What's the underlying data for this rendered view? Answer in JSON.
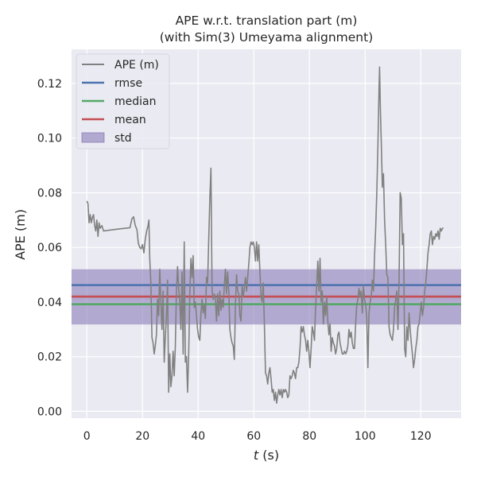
{
  "chart_data": {
    "type": "line",
    "title_line1": "APE w.r.t. translation part (m)",
    "title_line2": "(with Sim(3) Umeyama alignment)",
    "xlabel_var": "t",
    "xlabel_unit": " (s)",
    "ylabel": "APE (m)",
    "xlim": [
      -5.5,
      134.5
    ],
    "ylim": [
      -0.0025,
      0.1325
    ],
    "xticks": [
      0,
      20,
      40,
      60,
      80,
      100,
      120
    ],
    "yticks": [
      0.0,
      0.02,
      0.04,
      0.06,
      0.08,
      0.1,
      0.12
    ],
    "ytick_labels": [
      "0.00",
      "0.02",
      "0.04",
      "0.06",
      "0.08",
      "0.10",
      "0.12"
    ],
    "grid": true,
    "legend_position": "top-left",
    "stats": {
      "rmse": 0.0462,
      "median": 0.0392,
      "mean": 0.042,
      "std_low": 0.0318,
      "std_high": 0.052
    },
    "legend": [
      {
        "key": "ape",
        "label": "APE (m)",
        "kind": "line",
        "color": "#808080"
      },
      {
        "key": "rmse",
        "label": "rmse",
        "kind": "line",
        "color": "#4c72b0"
      },
      {
        "key": "median",
        "label": "median",
        "kind": "line",
        "color": "#55a868"
      },
      {
        "key": "mean",
        "label": "mean",
        "kind": "line",
        "color": "#c44e52"
      },
      {
        "key": "std",
        "label": "std",
        "kind": "patch",
        "color": "#8172b2"
      }
    ],
    "series": [
      {
        "name": "APE (m)",
        "color": "#808080",
        "points": [
          [
            0,
            0.077
          ],
          [
            0.4,
            0.076
          ],
          [
            0.8,
            0.069
          ],
          [
            1.2,
            0.072
          ],
          [
            1.6,
            0.069
          ],
          [
            2.0,
            0.071
          ],
          [
            2.4,
            0.072
          ],
          [
            2.8,
            0.068
          ],
          [
            3.2,
            0.066
          ],
          [
            3.6,
            0.07
          ],
          [
            4.0,
            0.064
          ],
          [
            4.4,
            0.069
          ],
          [
            4.8,
            0.067
          ],
          [
            5.4,
            0.068
          ],
          [
            6.0,
            0.066
          ],
          [
            8,
            0.0663
          ],
          [
            12,
            0.0668
          ],
          [
            15.5,
            0.0672
          ],
          [
            16.2,
            0.0705
          ],
          [
            16.8,
            0.0712
          ],
          [
            17.4,
            0.068
          ],
          [
            18.0,
            0.0665
          ],
          [
            18.5,
            0.0615
          ],
          [
            19.0,
            0.06
          ],
          [
            19.5,
            0.0595
          ],
          [
            20.0,
            0.061
          ],
          [
            20.5,
            0.058
          ],
          [
            21.0,
            0.063
          ],
          [
            21.5,
            0.066
          ],
          [
            22.0,
            0.068
          ],
          [
            22.3,
            0.07
          ],
          [
            22.6,
            0.056
          ],
          [
            23.0,
            0.047
          ],
          [
            23.4,
            0.027
          ],
          [
            23.8,
            0.025
          ],
          [
            24.2,
            0.021
          ],
          [
            24.6,
            0.024
          ],
          [
            25.0,
            0.028
          ],
          [
            25.4,
            0.041
          ],
          [
            25.8,
            0.035
          ],
          [
            26.2,
            0.052
          ],
          [
            26.6,
            0.04
          ],
          [
            27.0,
            0.03
          ],
          [
            27.4,
            0.044
          ],
          [
            27.8,
            0.018
          ],
          [
            28.2,
            0.027
          ],
          [
            28.6,
            0.035
          ],
          [
            29.0,
            0.048
          ],
          [
            29.4,
            0.007
          ],
          [
            29.8,
            0.021
          ],
          [
            30.2,
            0.009
          ],
          [
            30.6,
            0.013
          ],
          [
            31.0,
            0.022
          ],
          [
            31.4,
            0.013
          ],
          [
            31.8,
            0.024
          ],
          [
            32.2,
            0.044
          ],
          [
            32.6,
            0.053
          ],
          [
            33.0,
            0.045
          ],
          [
            33.4,
            0.04
          ],
          [
            33.8,
            0.03
          ],
          [
            34.2,
            0.051
          ],
          [
            34.6,
            0.021
          ],
          [
            35.0,
            0.062
          ],
          [
            35.4,
            0.018
          ],
          [
            35.8,
            0.02
          ],
          [
            36.2,
            0.007
          ],
          [
            36.6,
            0.021
          ],
          [
            37.0,
            0.043
          ],
          [
            37.4,
            0.056
          ],
          [
            37.8,
            0.049
          ],
          [
            38.2,
            0.057
          ],
          [
            38.6,
            0.038
          ],
          [
            39.0,
            0.04
          ],
          [
            39.4,
            0.035
          ],
          [
            39.8,
            0.03
          ],
          [
            40.2,
            0.027
          ],
          [
            40.6,
            0.026
          ],
          [
            41.0,
            0.036
          ],
          [
            41.4,
            0.041
          ],
          [
            41.8,
            0.036
          ],
          [
            42.2,
            0.039
          ],
          [
            42.6,
            0.034
          ],
          [
            43.0,
            0.049
          ],
          [
            43.4,
            0.047
          ],
          [
            43.8,
            0.063
          ],
          [
            44.2,
            0.078
          ],
          [
            44.6,
            0.089
          ],
          [
            45.0,
            0.044
          ],
          [
            45.4,
            0.041
          ],
          [
            45.8,
            0.043
          ],
          [
            46.2,
            0.041
          ],
          [
            46.6,
            0.033
          ],
          [
            47.0,
            0.043
          ],
          [
            47.4,
            0.035
          ],
          [
            47.8,
            0.044
          ],
          [
            48.2,
            0.037
          ],
          [
            48.6,
            0.041
          ],
          [
            49.0,
            0.038
          ],
          [
            49.4,
            0.046
          ],
          [
            49.8,
            0.052
          ],
          [
            50.2,
            0.043
          ],
          [
            50.6,
            0.051
          ],
          [
            51.0,
            0.044
          ],
          [
            51.4,
            0.03
          ],
          [
            51.8,
            0.027
          ],
          [
            52.2,
            0.025
          ],
          [
            52.6,
            0.024
          ],
          [
            53.0,
            0.019
          ],
          [
            53.4,
            0.039
          ],
          [
            53.8,
            0.05
          ],
          [
            54.2,
            0.044
          ],
          [
            54.6,
            0.043
          ],
          [
            55.0,
            0.035
          ],
          [
            55.4,
            0.033
          ],
          [
            55.8,
            0.046
          ],
          [
            56.2,
            0.042
          ],
          [
            56.6,
            0.045
          ],
          [
            57.0,
            0.049
          ],
          [
            57.4,
            0.044
          ],
          [
            57.8,
            0.049
          ],
          [
            58.2,
            0.054
          ],
          [
            58.6,
            0.06
          ],
          [
            59.0,
            0.062
          ],
          [
            59.4,
            0.061
          ],
          [
            59.8,
            0.062
          ],
          [
            60.2,
            0.06
          ],
          [
            60.6,
            0.055
          ],
          [
            61.0,
            0.062
          ],
          [
            61.4,
            0.055
          ],
          [
            61.8,
            0.061
          ],
          [
            62.2,
            0.051
          ],
          [
            62.6,
            0.042
          ],
          [
            63.0,
            0.04
          ],
          [
            63.4,
            0.047
          ],
          [
            63.8,
            0.032
          ],
          [
            64.2,
            0.014
          ],
          [
            64.6,
            0.013
          ],
          [
            65.0,
            0.01
          ],
          [
            65.4,
            0.014
          ],
          [
            65.8,
            0.016
          ],
          [
            66.2,
            0.012
          ],
          [
            66.6,
            0.007
          ],
          [
            67.0,
            0.008
          ],
          [
            67.4,
            0.004
          ],
          [
            67.8,
            0.007
          ],
          [
            68.2,
            0.003
          ],
          [
            68.6,
            0.006
          ],
          [
            69.0,
            0.008
          ],
          [
            69.4,
            0.006
          ],
          [
            69.8,
            0.008
          ],
          [
            70.2,
            0.005
          ],
          [
            70.6,
            0.008
          ],
          [
            71.0,
            0.007
          ],
          [
            71.4,
            0.008
          ],
          [
            71.8,
            0.007
          ],
          [
            72.2,
            0.005
          ],
          [
            72.6,
            0.006
          ],
          [
            73.0,
            0.013
          ],
          [
            73.4,
            0.012
          ],
          [
            73.8,
            0.013
          ],
          [
            74.2,
            0.015
          ],
          [
            74.6,
            0.014
          ],
          [
            75.0,
            0.012
          ],
          [
            75.4,
            0.016
          ],
          [
            75.8,
            0.016
          ],
          [
            76.2,
            0.018
          ],
          [
            76.6,
            0.023
          ],
          [
            77.0,
            0.031
          ],
          [
            77.4,
            0.029
          ],
          [
            77.8,
            0.031
          ],
          [
            78.2,
            0.028
          ],
          [
            78.6,
            0.026
          ],
          [
            79.0,
            0.022
          ],
          [
            79.4,
            0.026
          ],
          [
            79.8,
            0.022
          ],
          [
            80.2,
            0.016
          ],
          [
            80.6,
            0.023
          ],
          [
            81.0,
            0.031
          ],
          [
            81.4,
            0.029
          ],
          [
            81.8,
            0.026
          ],
          [
            82.2,
            0.038
          ],
          [
            82.6,
            0.046
          ],
          [
            83.0,
            0.055
          ],
          [
            83.4,
            0.044
          ],
          [
            83.8,
            0.056
          ],
          [
            84.2,
            0.04
          ],
          [
            84.6,
            0.044
          ],
          [
            85.0,
            0.032
          ],
          [
            85.4,
            0.04
          ],
          [
            85.8,
            0.035
          ],
          [
            86.2,
            0.042
          ],
          [
            86.6,
            0.033
          ],
          [
            87.0,
            0.028
          ],
          [
            87.4,
            0.032
          ],
          [
            87.8,
            0.022
          ],
          [
            88.2,
            0.027
          ],
          [
            88.6,
            0.025
          ],
          [
            89.0,
            0.024
          ],
          [
            89.4,
            0.021
          ],
          [
            89.8,
            0.023
          ],
          [
            90.2,
            0.028
          ],
          [
            90.6,
            0.029
          ],
          [
            91.0,
            0.025
          ],
          [
            91.4,
            0.023
          ],
          [
            91.8,
            0.021
          ],
          [
            92.2,
            0.021
          ],
          [
            92.6,
            0.022
          ],
          [
            93.0,
            0.021
          ],
          [
            93.4,
            0.022
          ],
          [
            93.8,
            0.024
          ],
          [
            94.2,
            0.03
          ],
          [
            94.6,
            0.027
          ],
          [
            95.0,
            0.029
          ],
          [
            95.4,
            0.025
          ],
          [
            95.8,
            0.023
          ],
          [
            96.2,
            0.023
          ],
          [
            96.6,
            0.032
          ],
          [
            97.0,
            0.039
          ],
          [
            97.4,
            0.041
          ],
          [
            97.8,
            0.045
          ],
          [
            98.2,
            0.042
          ],
          [
            98.6,
            0.044
          ],
          [
            99.0,
            0.036
          ],
          [
            99.4,
            0.046
          ],
          [
            99.8,
            0.041
          ],
          [
            100.2,
            0.039
          ],
          [
            100.6,
            0.034
          ],
          [
            101.0,
            0.016
          ],
          [
            101.4,
            0.036
          ],
          [
            101.8,
            0.04
          ],
          [
            102.2,
            0.042
          ],
          [
            102.6,
            0.048
          ],
          [
            103.0,
            0.044
          ],
          [
            103.4,
            0.057
          ],
          [
            103.8,
            0.067
          ],
          [
            104.2,
            0.08
          ],
          [
            104.6,
            0.097
          ],
          [
            105.0,
            0.118
          ],
          [
            105.2,
            0.126
          ],
          [
            105.5,
            0.11
          ],
          [
            105.8,
            0.099
          ],
          [
            106.2,
            0.082
          ],
          [
            106.6,
            0.087
          ],
          [
            107.0,
            0.07
          ],
          [
            107.4,
            0.061
          ],
          [
            107.8,
            0.05
          ],
          [
            108.2,
            0.049
          ],
          [
            108.6,
            0.031
          ],
          [
            109.0,
            0.028
          ],
          [
            109.4,
            0.027
          ],
          [
            109.8,
            0.026
          ],
          [
            110.2,
            0.03
          ],
          [
            110.6,
            0.038
          ],
          [
            111.0,
            0.041
          ],
          [
            111.4,
            0.044
          ],
          [
            111.8,
            0.03
          ],
          [
            112.2,
            0.048
          ],
          [
            112.6,
            0.08
          ],
          [
            113.0,
            0.078
          ],
          [
            113.4,
            0.061
          ],
          [
            113.8,
            0.065
          ],
          [
            114.2,
            0.023
          ],
          [
            114.6,
            0.02
          ],
          [
            115.0,
            0.031
          ],
          [
            115.4,
            0.026
          ],
          [
            115.8,
            0.036
          ],
          [
            116.2,
            0.03
          ],
          [
            116.6,
            0.025
          ],
          [
            117.0,
            0.021
          ],
          [
            117.4,
            0.016
          ],
          [
            117.8,
            0.019
          ],
          [
            118.2,
            0.023
          ],
          [
            118.6,
            0.026
          ],
          [
            119.0,
            0.031
          ],
          [
            119.4,
            0.032
          ],
          [
            119.8,
            0.036
          ],
          [
            120.2,
            0.04
          ],
          [
            120.6,
            0.035
          ],
          [
            121.0,
            0.038
          ],
          [
            121.4,
            0.044
          ],
          [
            121.8,
            0.047
          ],
          [
            122.2,
            0.052
          ],
          [
            122.6,
            0.058
          ],
          [
            123.0,
            0.061
          ],
          [
            123.4,
            0.065
          ],
          [
            123.8,
            0.066
          ],
          [
            124.2,
            0.061
          ],
          [
            124.6,
            0.064
          ],
          [
            125.0,
            0.063
          ],
          [
            125.4,
            0.065
          ],
          [
            125.8,
            0.064
          ],
          [
            126.2,
            0.066
          ],
          [
            126.6,
            0.063
          ],
          [
            127.0,
            0.067
          ],
          [
            127.4,
            0.066
          ],
          [
            127.8,
            0.067
          ],
          [
            128.2,
            0.067
          ]
        ]
      }
    ]
  }
}
